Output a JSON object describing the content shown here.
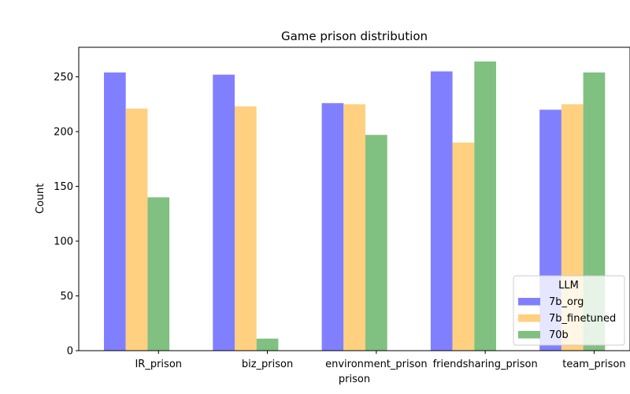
{
  "chart_data": {
    "type": "bar",
    "title": "Game prison distribution",
    "xlabel": "prison",
    "ylabel": "Count",
    "categories": [
      "IR_prison",
      "biz_prison",
      "environment_prison",
      "friendsharing_prison",
      "team_prison"
    ],
    "ylim": [
      0,
      277
    ],
    "yticks": [
      0,
      50,
      100,
      150,
      200,
      250
    ],
    "series": [
      {
        "name": "7b_org",
        "color": "#8080ff",
        "values": [
          254,
          252,
          226,
          255,
          220
        ]
      },
      {
        "name": "7b_finetuned",
        "color": "#ffd080",
        "values": [
          221,
          223,
          225,
          190,
          225
        ]
      },
      {
        "name": "70b",
        "color": "#80c080",
        "values": [
          140,
          11,
          197,
          264,
          254
        ]
      }
    ],
    "legend": {
      "title": "LLM",
      "position": "bottom-right"
    },
    "grid": false
  }
}
